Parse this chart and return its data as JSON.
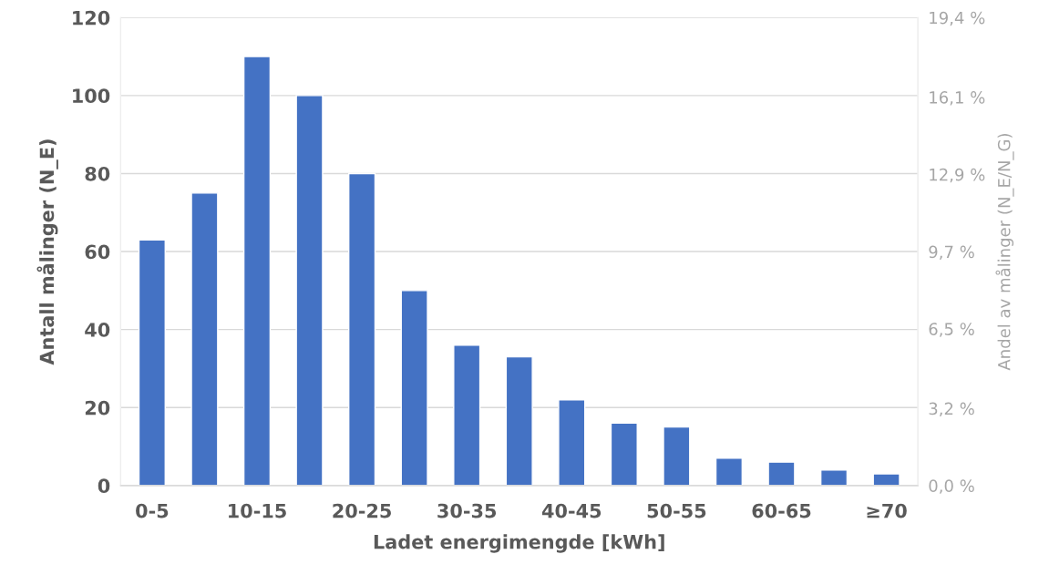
{
  "chart_data": {
    "type": "bar",
    "xlabel": "Ladet energimengde [kWh]",
    "ylabel": "Antall målinger (N_E)",
    "y2label": "Andel av målinger (N_E/N_G)",
    "categories": [
      "0-5",
      null,
      "10-15",
      null,
      "20-25",
      null,
      "30-35",
      null,
      "40-45",
      null,
      "50-55",
      null,
      "60-65",
      null,
      "≥70"
    ],
    "series": [
      {
        "color": "#4472c4",
        "values": [
          63,
          75,
          110,
          100,
          80,
          50,
          36,
          33,
          22,
          16,
          15,
          7,
          6,
          4,
          3
        ]
      }
    ],
    "ylim": [
      0,
      120
    ],
    "yticks": [
      0,
      20,
      40,
      60,
      80,
      100,
      120
    ],
    "y2lim": [
      0,
      19.4
    ],
    "y2ticks": [
      {
        "value": 0,
        "label": "0,0 %"
      },
      {
        "value": 3.2,
        "label": "3,2 %"
      },
      {
        "value": 6.5,
        "label": "6,5 %"
      },
      {
        "value": 9.7,
        "label": "9,7 %"
      },
      {
        "value": 12.9,
        "label": "12,9 %"
      },
      {
        "value": 16.1,
        "label": "16,1 %"
      },
      {
        "value": 19.4,
        "label": "19,4 %"
      }
    ],
    "grid": "y",
    "legend": false
  }
}
